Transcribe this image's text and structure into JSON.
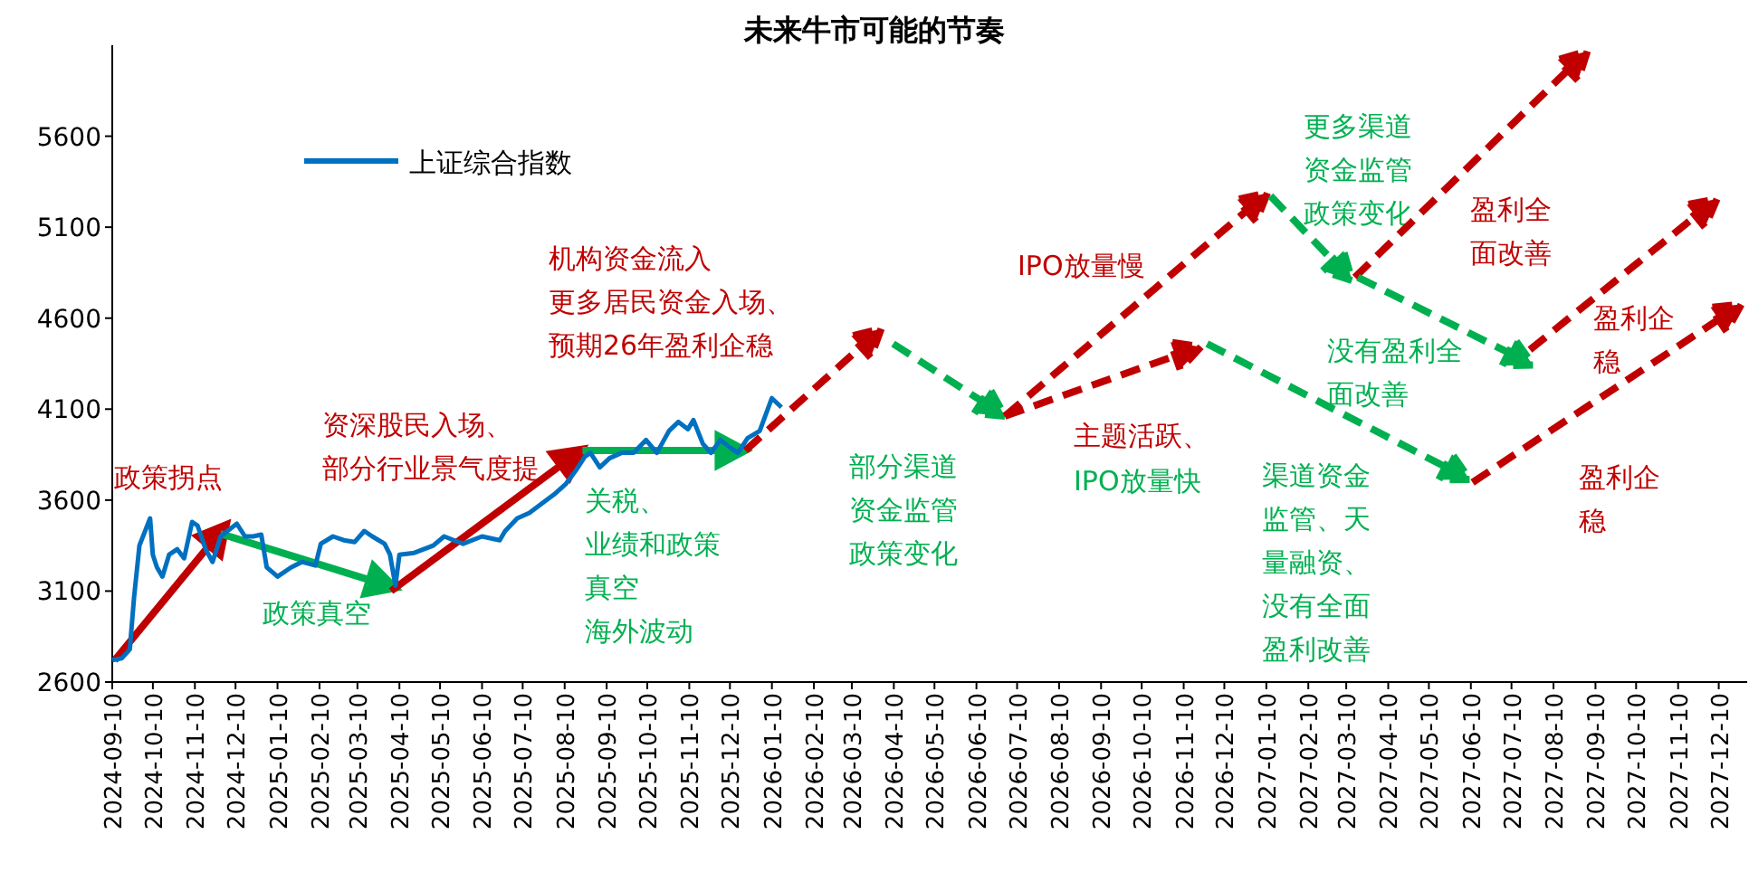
{
  "chart_data": {
    "type": "line",
    "title": "未来牛市可能的节奏",
    "xlim": [
      "2024-09-10",
      "2027-12-31"
    ],
    "xticks": [
      "2024-09-10",
      "2024-10-10",
      "2024-11-10",
      "2024-12-10",
      "2025-01-10",
      "2025-02-10",
      "2025-03-10",
      "2025-04-10",
      "2025-05-10",
      "2025-06-10",
      "2025-07-10",
      "2025-08-10",
      "2025-09-10",
      "2025-10-10",
      "2025-11-10",
      "2025-12-10",
      "2026-01-10",
      "2026-02-10",
      "2026-03-10",
      "2026-04-10",
      "2026-05-10",
      "2026-06-10",
      "2026-07-10",
      "2026-08-10",
      "2026-09-10",
      "2026-10-10",
      "2026-11-10",
      "2026-12-10",
      "2027-01-10",
      "2027-02-10",
      "2027-03-10",
      "2027-04-10",
      "2027-05-10",
      "2027-06-10",
      "2027-07-10",
      "2027-08-10",
      "2027-09-10",
      "2027-10-10",
      "2027-11-10",
      "2027-12-10"
    ],
    "ylim": [
      2600,
      6100
    ],
    "yticks": [
      2600,
      3100,
      3600,
      4100,
      4600,
      5100,
      5600
    ],
    "legend": "top left",
    "series": [
      {
        "name": "上证综合指数",
        "color": "#0070c0",
        "x": [
          "2024-09-10",
          "2024-09-17",
          "2024-09-23",
          "2024-09-26",
          "2024-09-30",
          "2024-10-08",
          "2024-10-10",
          "2024-10-13",
          "2024-10-17",
          "2024-10-22",
          "2024-10-28",
          "2024-11-02",
          "2024-11-08",
          "2024-11-12",
          "2024-11-18",
          "2024-11-23",
          "2024-11-29",
          "2024-12-04",
          "2024-12-11",
          "2024-12-17",
          "2024-12-23",
          "2024-12-29",
          "2025-01-02",
          "2025-01-10",
          "2025-01-20",
          "2025-01-28",
          "2025-02-07",
          "2025-02-11",
          "2025-02-20",
          "2025-02-28",
          "2025-03-08",
          "2025-03-15",
          "2025-03-21",
          "2025-03-30",
          "2025-04-03",
          "2025-04-07",
          "2025-04-10",
          "2025-04-21",
          "2025-05-05",
          "2025-05-13",
          "2025-05-27",
          "2025-06-10",
          "2025-06-23",
          "2025-06-27",
          "2025-07-06",
          "2025-07-15",
          "2025-07-24",
          "2025-08-02",
          "2025-08-11",
          "2025-08-18",
          "2025-08-25",
          "2025-08-29",
          "2025-09-05",
          "2025-09-12",
          "2025-09-21",
          "2025-09-30",
          "2025-10-09",
          "2025-10-17",
          "2025-10-26",
          "2025-11-02",
          "2025-11-09",
          "2025-11-13",
          "2025-11-20",
          "2025-11-26",
          "2025-12-03",
          "2025-12-10",
          "2025-12-16",
          "2025-12-23",
          "2026-01-01",
          "2026-01-10",
          "2026-01-17"
        ],
        "values": [
          2720,
          2730,
          2780,
          3060,
          3350,
          3500,
          3300,
          3230,
          3180,
          3300,
          3330,
          3280,
          3480,
          3460,
          3330,
          3260,
          3400,
          3430,
          3470,
          3400,
          3400,
          3410,
          3230,
          3180,
          3230,
          3260,
          3240,
          3360,
          3400,
          3380,
          3370,
          3430,
          3400,
          3360,
          3300,
          3130,
          3300,
          3310,
          3350,
          3400,
          3360,
          3400,
          3380,
          3430,
          3500,
          3530,
          3580,
          3630,
          3690,
          3760,
          3840,
          3860,
          3780,
          3830,
          3860,
          3860,
          3930,
          3860,
          3980,
          4030,
          3990,
          4040,
          3910,
          3860,
          3930,
          3890,
          3860,
          3940,
          3980,
          4160,
          4110
        ]
      }
    ],
    "annotations": [
      "政策拐点",
      "资深股民入场、部分行业景气度提",
      "机构资金流入更多居民资金入场、预期26年盈利企稳",
      {
        "text": "政策真空",
        "x": "2025-02-01",
        "y": 3260
      },
      {
        "text": "关税、业绩和政策真空海外波动",
        "x": "2025-10-21",
        "y": 3870
      },
      "部分渠道资金监管政策变化",
      "IPO放量慢",
      "主题活跃、",
      "IPO放量快",
      "更多渠道资金监管政策变化",
      "盈利全面改善",
      "没有盈利全面改善",
      "盈利企稳",
      "渠道资金监管、天量融资、没有全面盈利改善",
      "盈利企稳"
    ]
  }
}
